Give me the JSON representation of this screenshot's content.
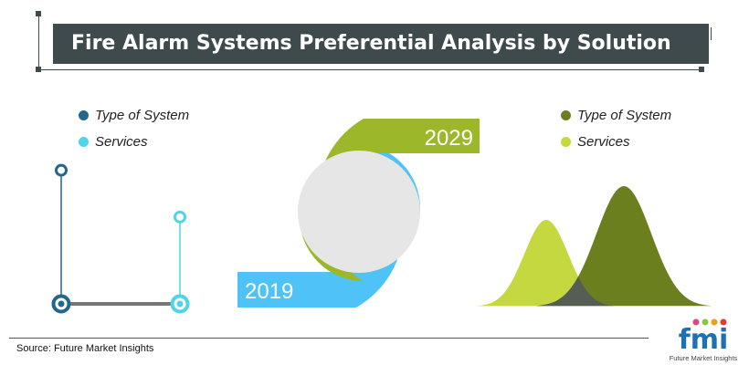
{
  "title": "Fire Alarm Systems Preferential Analysis by Solution",
  "source": "Source: Future Market Insights",
  "legend_left": [
    {
      "label": "Type of System",
      "color": "#23678c"
    },
    {
      "label": "Services",
      "color": "#4fd4ea"
    }
  ],
  "legend_right": [
    {
      "label": "Type of System",
      "color": "#6b7f1e"
    },
    {
      "label": "Services",
      "color": "#c6d840"
    }
  ],
  "logo": {
    "text": "fmi",
    "tagline": "Future Market Insights"
  },
  "chart_data": [
    {
      "type": "dumbbell",
      "series": [
        {
          "name": "Type of System",
          "color": "#23678c",
          "high": 0.8,
          "low": 0
        },
        {
          "name": "Services",
          "color": "#4fd4ea",
          "high": 0.52,
          "low": 0
        }
      ]
    },
    {
      "type": "donut",
      "labels": [
        "2019",
        "2029"
      ],
      "colors": {
        "2019": "#4fc3f7",
        "2029": "#9cb82a"
      }
    },
    {
      "type": "distribution",
      "series": [
        {
          "name": "Services",
          "color": "#c6d840",
          "height": 0.72
        },
        {
          "name": "Type of System",
          "color": "#6b7f1e",
          "height": 1.0
        }
      ]
    }
  ]
}
